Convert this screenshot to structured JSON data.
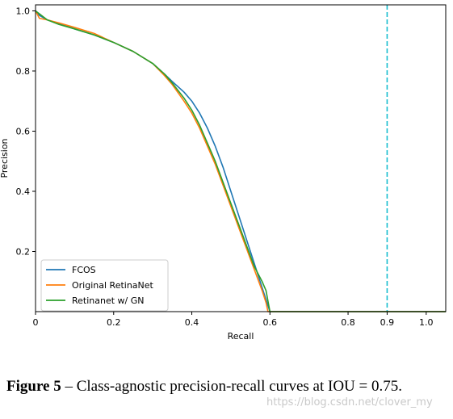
{
  "chart_data": {
    "type": "line",
    "xlabel": "Recall",
    "ylabel": "Precision",
    "xlim": [
      0,
      1.05
    ],
    "ylim": [
      0.0,
      1.02
    ],
    "xticks": [
      0,
      0.2,
      0.4,
      0.6,
      0.8,
      0.9,
      1.0
    ],
    "xtick_labels": [
      "0",
      "0.2",
      "0.4",
      "0.6",
      "0.8",
      "0.9",
      "1.0"
    ],
    "yticks": [
      0.2,
      0.4,
      0.6,
      0.8,
      1.0
    ],
    "ytick_labels": [
      "0.2",
      "0.4",
      "0.6",
      "0.8",
      "1.0"
    ],
    "grid": false,
    "legend": "lower-left",
    "reference_line": {
      "x": 0.9,
      "style": "dashed",
      "color": "#17becf"
    },
    "series": [
      {
        "name": "FCOS",
        "color": "#1f77b4",
        "points": [
          [
            0,
            1.0
          ],
          [
            0.01,
            0.985
          ],
          [
            0.03,
            0.97
          ],
          [
            0.06,
            0.958
          ],
          [
            0.1,
            0.94
          ],
          [
            0.15,
            0.92
          ],
          [
            0.2,
            0.895
          ],
          [
            0.25,
            0.865
          ],
          [
            0.3,
            0.825
          ],
          [
            0.33,
            0.79
          ],
          [
            0.35,
            0.765
          ],
          [
            0.38,
            0.73
          ],
          [
            0.4,
            0.7
          ],
          [
            0.42,
            0.66
          ],
          [
            0.44,
            0.61
          ],
          [
            0.46,
            0.55
          ],
          [
            0.48,
            0.48
          ],
          [
            0.5,
            0.4
          ],
          [
            0.52,
            0.32
          ],
          [
            0.54,
            0.24
          ],
          [
            0.56,
            0.16
          ],
          [
            0.58,
            0.08
          ],
          [
            0.59,
            0.04
          ],
          [
            0.6,
            0.0
          ],
          [
            1.05,
            0.0
          ]
        ]
      },
      {
        "name": "Original RetinaNet",
        "color": "#ff7f0e",
        "points": [
          [
            0,
            1.0
          ],
          [
            0.01,
            0.975
          ],
          [
            0.03,
            0.97
          ],
          [
            0.06,
            0.96
          ],
          [
            0.1,
            0.945
          ],
          [
            0.15,
            0.925
          ],
          [
            0.2,
            0.895
          ],
          [
            0.25,
            0.865
          ],
          [
            0.3,
            0.825
          ],
          [
            0.33,
            0.785
          ],
          [
            0.35,
            0.755
          ],
          [
            0.38,
            0.7
          ],
          [
            0.4,
            0.66
          ],
          [
            0.42,
            0.61
          ],
          [
            0.44,
            0.55
          ],
          [
            0.46,
            0.49
          ],
          [
            0.48,
            0.42
          ],
          [
            0.5,
            0.35
          ],
          [
            0.52,
            0.28
          ],
          [
            0.54,
            0.21
          ],
          [
            0.56,
            0.14
          ],
          [
            0.58,
            0.07
          ],
          [
            0.59,
            0.03
          ],
          [
            0.595,
            0.0
          ],
          [
            1.05,
            0.0
          ]
        ]
      },
      {
        "name": "Retinanet w/ GN",
        "color": "#2ca02c",
        "points": [
          [
            0,
            1.0
          ],
          [
            0.01,
            0.99
          ],
          [
            0.03,
            0.97
          ],
          [
            0.06,
            0.955
          ],
          [
            0.1,
            0.94
          ],
          [
            0.15,
            0.92
          ],
          [
            0.2,
            0.895
          ],
          [
            0.25,
            0.865
          ],
          [
            0.3,
            0.825
          ],
          [
            0.33,
            0.79
          ],
          [
            0.35,
            0.76
          ],
          [
            0.38,
            0.71
          ],
          [
            0.4,
            0.67
          ],
          [
            0.42,
            0.62
          ],
          [
            0.44,
            0.56
          ],
          [
            0.46,
            0.5
          ],
          [
            0.48,
            0.43
          ],
          [
            0.5,
            0.36
          ],
          [
            0.52,
            0.29
          ],
          [
            0.54,
            0.22
          ],
          [
            0.56,
            0.15
          ],
          [
            0.58,
            0.1
          ],
          [
            0.59,
            0.07
          ],
          [
            0.595,
            0.035
          ],
          [
            0.6,
            0.0
          ],
          [
            1.05,
            0.0
          ]
        ]
      }
    ]
  },
  "caption": {
    "figure_label": "Figure 5",
    "separator": " – ",
    "text": "Class-agnostic precision-recall curves at IOU = 0.75."
  },
  "watermark": "https://blog.csdn.net/clover_my"
}
